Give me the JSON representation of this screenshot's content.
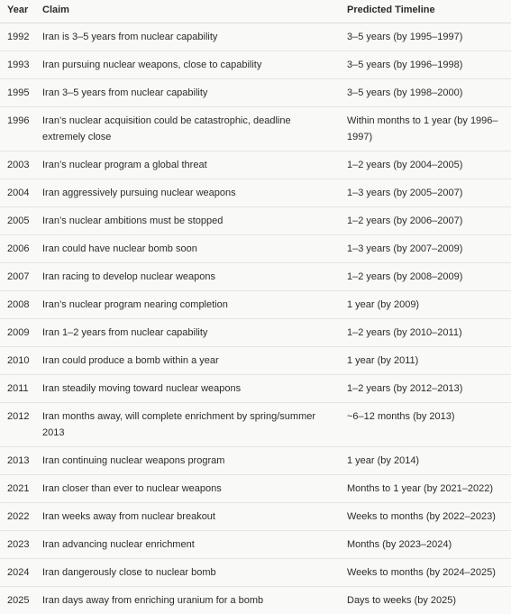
{
  "table": {
    "header": [
      "Year",
      "Claim",
      "Predicted Timeline"
    ],
    "rows": [
      [
        "1992",
        "Iran is 3–5 years from nuclear capability",
        "3–5 years (by 1995–1997)"
      ],
      [
        "1993",
        "Iran pursuing nuclear weapons, close to capability",
        "3–5 years (by 1996–1998)"
      ],
      [
        "1995",
        "Iran 3–5 years from nuclear capability",
        "3–5 years (by 1998–2000)"
      ],
      [
        "1996",
        "Iran’s nuclear acquisition could be catastrophic, deadline extremely close",
        "Within months to 1 year (by 1996–1997)"
      ],
      [
        "2003",
        "Iran’s nuclear program a global threat",
        "1–2 years (by 2004–2005)"
      ],
      [
        "2004",
        "Iran aggressively pursuing nuclear weapons",
        "1–3 years (by 2005–2007)"
      ],
      [
        "2005",
        "Iran’s nuclear ambitions must be stopped",
        "1–2 years (by 2006–2007)"
      ],
      [
        "2006",
        "Iran could have nuclear bomb soon",
        "1–3 years (by 2007–2009)"
      ],
      [
        "2007",
        "Iran racing to develop nuclear weapons",
        "1–2 years (by 2008–2009)"
      ],
      [
        "2008",
        "Iran’s nuclear program nearing completion",
        "1 year (by 2009)"
      ],
      [
        "2009",
        "Iran 1–2 years from nuclear capability",
        "1–2 years (by 2010–2011)"
      ],
      [
        "2010",
        "Iran could produce a bomb within a year",
        "1 year (by 2011)"
      ],
      [
        "2011",
        "Iran steadily moving toward nuclear weapons",
        "1–2 years (by 2012–2013)"
      ],
      [
        "2012",
        "Iran months away, will complete enrichment by spring/summer 2013",
        "~6–12 months (by 2013)"
      ],
      [
        "2013",
        "Iran continuing nuclear weapons program",
        "1 year (by 2014)"
      ],
      [
        "2021",
        "Iran closer than ever to nuclear weapons",
        "Months to 1 year (by 2021–2022)"
      ],
      [
        "2022",
        "Iran weeks away from nuclear breakout",
        "Weeks to months (by 2022–2023)"
      ],
      [
        "2023",
        "Iran advancing nuclear enrichment",
        "Months (by 2023–2024)"
      ],
      [
        "2024",
        "Iran dangerously close to nuclear bomb",
        "Weeks to months (by 2024–2025)"
      ],
      [
        "2025",
        "Iran days away from enriching uranium for a bomb",
        "Days to weeks (by 2025)"
      ]
    ]
  }
}
